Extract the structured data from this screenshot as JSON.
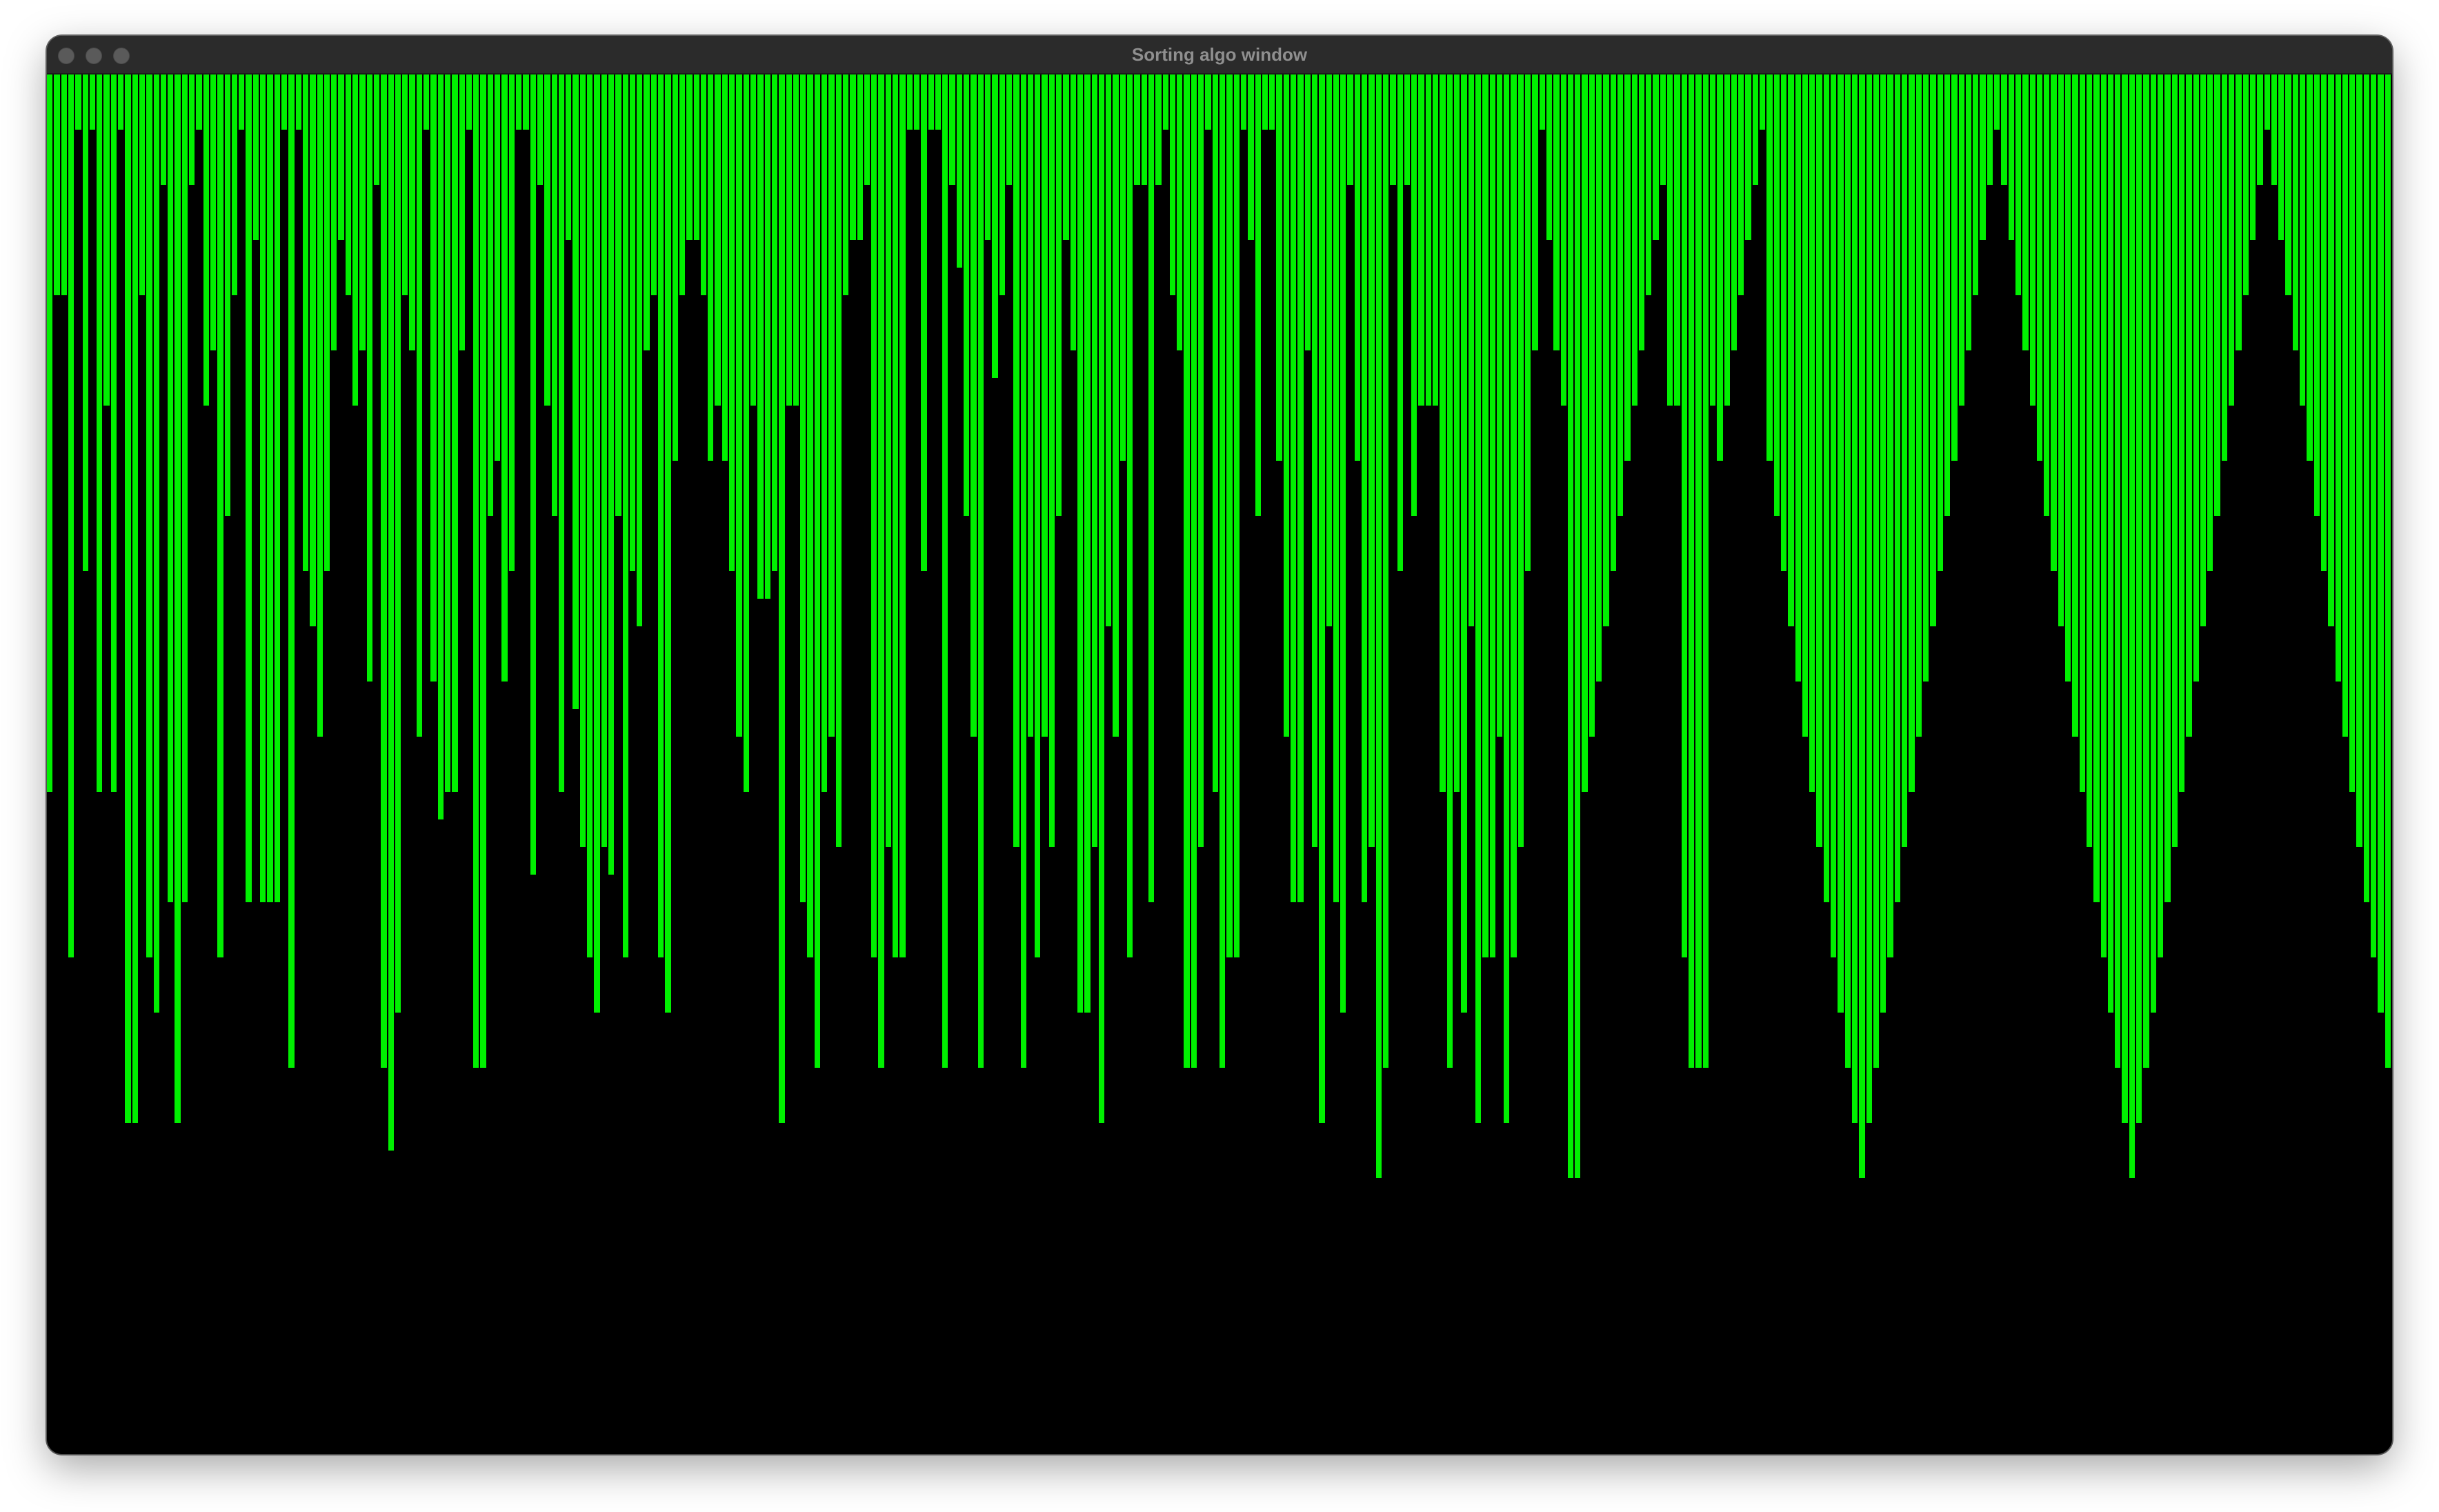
{
  "window": {
    "title": "Sorting algo window",
    "controls": [
      "close",
      "minimize",
      "zoom"
    ]
  },
  "canvas": {
    "background": "#000000"
  },
  "chart_data": {
    "type": "bar",
    "orientation": "hanging-from-top",
    "bar_color": "#00f000",
    "ylim": [
      0,
      1000
    ],
    "values": [
      520,
      160,
      160,
      640,
      40,
      360,
      40,
      520,
      240,
      520,
      40,
      760,
      760,
      160,
      640,
      680,
      80,
      600,
      760,
      600,
      80,
      40,
      240,
      200,
      640,
      320,
      160,
      40,
      600,
      120,
      600,
      600,
      600,
      40,
      720,
      40,
      360,
      400,
      480,
      360,
      200,
      120,
      160,
      240,
      200,
      440,
      80,
      720,
      780,
      680,
      160,
      200,
      480,
      40,
      440,
      540,
      520,
      520,
      200,
      40,
      720,
      720,
      320,
      280,
      440,
      360,
      40,
      40,
      580,
      80,
      240,
      320,
      520,
      120,
      460,
      560,
      640,
      680,
      560,
      580,
      320,
      640,
      360,
      400,
      200,
      160,
      640,
      680,
      280,
      160,
      120,
      120,
      160,
      280,
      240,
      280,
      360,
      480,
      520,
      240,
      380,
      380,
      360,
      760,
      240,
      240,
      600,
      640,
      720,
      520,
      480,
      560,
      160,
      120,
      120,
      80,
      640,
      720,
      560,
      640,
      640,
      40,
      40,
      360,
      40,
      40,
      720,
      80,
      140,
      320,
      480,
      720,
      120,
      220,
      160,
      80,
      560,
      720,
      480,
      640,
      480,
      560,
      320,
      120,
      200,
      680,
      680,
      560,
      760,
      400,
      480,
      280,
      640,
      80,
      80,
      600,
      80,
      40,
      160,
      200,
      720,
      720,
      560,
      40,
      520,
      720,
      640,
      640,
      40,
      120,
      320,
      40,
      40,
      280,
      480,
      600,
      600,
      200,
      560,
      760,
      400,
      600,
      680,
      80,
      280,
      600,
      560,
      800,
      720,
      80,
      360,
      80,
      320,
      240,
      240,
      240,
      520,
      720,
      520,
      680,
      400,
      760,
      640,
      640,
      480,
      760,
      640,
      560,
      360,
      200,
      40,
      120,
      200,
      240,
      800,
      800,
      520,
      480,
      440,
      400,
      360,
      320,
      280,
      240,
      200,
      160,
      120,
      80,
      240,
      240,
      640,
      720,
      720,
      720,
      240,
      280,
      240,
      200,
      160,
      120,
      80,
      40,
      280,
      320,
      360,
      400,
      440,
      480,
      520,
      560,
      600,
      640,
      680,
      720,
      760,
      800,
      760,
      720,
      680,
      640,
      600,
      560,
      520,
      480,
      440,
      400,
      360,
      320,
      280,
      240,
      200,
      160,
      120,
      80,
      40,
      80,
      120,
      160,
      200,
      240,
      280,
      320,
      360,
      400,
      440,
      480,
      520,
      560,
      600,
      640,
      680,
      720,
      760,
      800,
      760,
      720,
      680,
      640,
      600,
      560,
      520,
      480,
      440,
      400,
      360,
      320,
      280,
      240,
      200,
      160,
      120,
      80,
      40,
      80,
      120,
      160,
      200,
      240,
      280,
      320,
      360,
      400,
      440,
      480,
      520,
      560,
      600,
      640,
      680,
      720
    ]
  }
}
